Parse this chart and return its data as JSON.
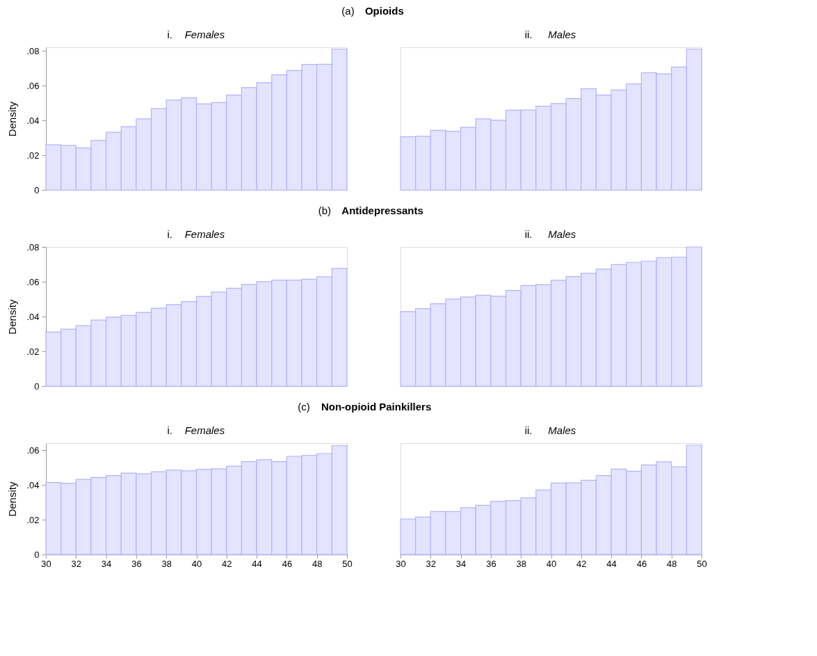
{
  "chart_data": [
    {
      "type": "histogram",
      "title": "(a) Opioids",
      "subtitle": "i. Females",
      "ylabel": "Density",
      "bins": [
        30,
        31,
        32,
        33,
        34,
        35,
        36,
        37,
        38,
        39,
        40,
        41,
        42,
        43,
        44,
        45,
        46,
        47,
        48,
        49,
        50
      ],
      "values": [
        0.026,
        0.0256,
        0.0242,
        0.0285,
        0.0332,
        0.0364,
        0.0409,
        0.0468,
        0.0517,
        0.053,
        0.0495,
        0.0503,
        0.0546,
        0.0589,
        0.0617,
        0.0662,
        0.0687,
        0.0722,
        0.0723,
        0.081
      ],
      "color": "#e4e4fe",
      "xlim": [
        30,
        50
      ],
      "ylim": [
        0,
        0.082
      ],
      "yticks": [
        0,
        {
          "value": 0.02,
          "label": ".02"
        },
        {
          "value": 0.04,
          "label": ".04"
        },
        {
          "value": 0.06,
          "label": ".06"
        },
        {
          "value": 0.08,
          "label": ".08"
        }
      ],
      "tick_labels": "y"
    },
    {
      "type": "histogram",
      "subtitle": "ii. Males",
      "bins": [
        30,
        31,
        32,
        33,
        34,
        35,
        36,
        37,
        38,
        39,
        40,
        41,
        42,
        43,
        44,
        45,
        46,
        47,
        48,
        49,
        50
      ],
      "values": [
        0.0306,
        0.0309,
        0.0343,
        0.0338,
        0.036,
        0.0409,
        0.0401,
        0.0459,
        0.046,
        0.0482,
        0.0497,
        0.0526,
        0.0582,
        0.0546,
        0.0575,
        0.061,
        0.0674,
        0.0668,
        0.0707,
        0.081
      ],
      "color": "#e4e4fe",
      "xlim": [
        30,
        50
      ],
      "ylim": [
        0,
        0.082
      ],
      "tick_labels": false
    },
    {
      "type": "histogram",
      "title": "(b) Antidepressants",
      "subtitle": "i. Females",
      "ylabel": "Density",
      "bins": [
        30,
        31,
        32,
        33,
        34,
        35,
        36,
        37,
        38,
        39,
        40,
        41,
        42,
        43,
        44,
        45,
        46,
        47,
        48,
        49,
        50
      ],
      "values": [
        0.0311,
        0.0328,
        0.0348,
        0.038,
        0.0397,
        0.0407,
        0.0424,
        0.0448,
        0.0469,
        0.0486,
        0.0516,
        0.0541,
        0.0563,
        0.0585,
        0.0601,
        0.061,
        0.061,
        0.0615,
        0.0629,
        0.0677
      ],
      "color": "#e4e4fe",
      "xlim": [
        30,
        50
      ],
      "ylim": [
        0,
        0.08
      ],
      "yticks": [
        0,
        {
          "value": 0.02,
          "label": ".02"
        },
        {
          "value": 0.04,
          "label": ".04"
        },
        {
          "value": 0.06,
          "label": ".06"
        },
        {
          "value": 0.08,
          "label": ".08"
        }
      ],
      "tick_labels": "y"
    },
    {
      "type": "histogram",
      "subtitle": "ii. Males",
      "bins": [
        30,
        31,
        32,
        33,
        34,
        35,
        36,
        37,
        38,
        39,
        40,
        41,
        42,
        43,
        44,
        45,
        46,
        47,
        48,
        49,
        50
      ],
      "values": [
        0.0429,
        0.0446,
        0.0474,
        0.0501,
        0.0513,
        0.0523,
        0.0517,
        0.055,
        0.0579,
        0.0584,
        0.0609,
        0.063,
        0.0649,
        0.0673,
        0.0699,
        0.0711,
        0.0719,
        0.0739,
        0.0741,
        0.08
      ],
      "color": "#e4e4fe",
      "xlim": [
        30,
        50
      ],
      "ylim": [
        0,
        0.08
      ],
      "tick_labels": false
    },
    {
      "type": "histogram",
      "title": "(c) Non-opioid Painkillers",
      "subtitle": "i. Females",
      "ylabel": "Density",
      "bins": [
        30,
        31,
        32,
        33,
        34,
        35,
        36,
        37,
        38,
        39,
        40,
        41,
        42,
        43,
        44,
        45,
        46,
        47,
        48,
        49,
        50
      ],
      "values": [
        0.0414,
        0.041,
        0.0432,
        0.0443,
        0.0454,
        0.0468,
        0.0464,
        0.0476,
        0.0486,
        0.0481,
        0.049,
        0.0493,
        0.0508,
        0.0534,
        0.0545,
        0.0534,
        0.0564,
        0.057,
        0.058,
        0.0626
      ],
      "color": "#e4e4fe",
      "xlim": [
        30,
        50
      ],
      "ylim": [
        0,
        0.064
      ],
      "xticks": [
        30,
        32,
        34,
        36,
        38,
        40,
        42,
        44,
        46,
        48,
        50
      ],
      "yticks": [
        0,
        {
          "value": 0.02,
          "label": ".02"
        },
        {
          "value": 0.04,
          "label": ".04"
        },
        {
          "value": 0.06,
          "label": ".06"
        }
      ]
    },
    {
      "type": "histogram",
      "subtitle": "ii. Males",
      "bins": [
        30,
        31,
        32,
        33,
        34,
        35,
        36,
        37,
        38,
        39,
        40,
        41,
        42,
        43,
        44,
        45,
        46,
        47,
        48,
        49,
        50
      ],
      "values": [
        0.0204,
        0.0216,
        0.0247,
        0.0247,
        0.0269,
        0.0283,
        0.0306,
        0.031,
        0.0326,
        0.0371,
        0.0411,
        0.0412,
        0.0427,
        0.0454,
        0.0491,
        0.0479,
        0.0515,
        0.0533,
        0.0504,
        0.0628
      ],
      "color": "#e4e4fe",
      "xlim": [
        30,
        50
      ],
      "ylim": [
        0,
        0.064
      ],
      "xticks": [
        30,
        32,
        34,
        36,
        38,
        40,
        42,
        44,
        46,
        48,
        50
      ],
      "tick_labels": "x"
    }
  ]
}
